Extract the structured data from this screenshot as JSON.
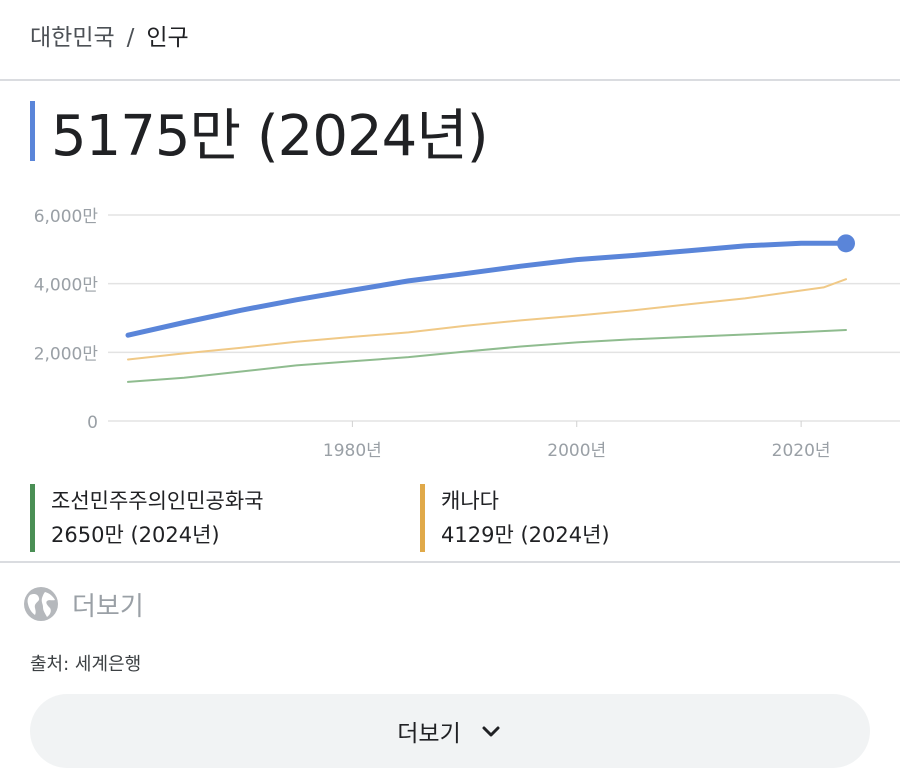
{
  "breadcrumb": {
    "country": "대한민국",
    "separator": "/",
    "topic": "인구"
  },
  "headline": {
    "value": "5175만 (2024년)"
  },
  "chart_data": {
    "type": "line",
    "x_range": [
      1960,
      2024
    ],
    "ylim": [
      0,
      60000000
    ],
    "y_ticks": [
      {
        "value": 60000000,
        "label": "6,000만"
      },
      {
        "value": 40000000,
        "label": "4,000만"
      },
      {
        "value": 20000000,
        "label": "2,000만"
      },
      {
        "value": 0,
        "label": "0"
      }
    ],
    "x_ticks": [
      {
        "value": 1980,
        "label": "1980년"
      },
      {
        "value": 2000,
        "label": "2000년"
      },
      {
        "value": 2020,
        "label": "2020년"
      }
    ],
    "grid": true,
    "series": [
      {
        "key": "korea",
        "color": "#5a85d9",
        "points": [
          [
            1960,
            25000000
          ],
          [
            1965,
            28700000
          ],
          [
            1970,
            32200000
          ],
          [
            1975,
            35300000
          ],
          [
            1980,
            38100000
          ],
          [
            1985,
            40800000
          ],
          [
            1990,
            42900000
          ],
          [
            1995,
            45100000
          ],
          [
            2000,
            47000000
          ],
          [
            2005,
            48200000
          ],
          [
            2010,
            49600000
          ],
          [
            2015,
            51000000
          ],
          [
            2020,
            51800000
          ],
          [
            2024,
            51750000
          ]
        ]
      },
      {
        "key": "nk",
        "color": "#8fbc8f",
        "points": [
          [
            1960,
            11400000
          ],
          [
            1965,
            12600000
          ],
          [
            1970,
            14400000
          ],
          [
            1975,
            16200000
          ],
          [
            1980,
            17400000
          ],
          [
            1985,
            18600000
          ],
          [
            1990,
            20200000
          ],
          [
            1995,
            21700000
          ],
          [
            2000,
            22900000
          ],
          [
            2005,
            23800000
          ],
          [
            2010,
            24500000
          ],
          [
            2015,
            25200000
          ],
          [
            2020,
            25900000
          ],
          [
            2024,
            26500000
          ]
        ]
      },
      {
        "key": "canada",
        "color": "#f0c987",
        "points": [
          [
            1960,
            17900000
          ],
          [
            1965,
            19700000
          ],
          [
            1970,
            21300000
          ],
          [
            1975,
            23100000
          ],
          [
            1980,
            24500000
          ],
          [
            1985,
            25800000
          ],
          [
            1990,
            27700000
          ],
          [
            1995,
            29300000
          ],
          [
            2000,
            30700000
          ],
          [
            2005,
            32200000
          ],
          [
            2010,
            34000000
          ],
          [
            2015,
            35700000
          ],
          [
            2020,
            38000000
          ],
          [
            2022,
            38900000
          ],
          [
            2024,
            41290000
          ]
        ]
      }
    ]
  },
  "legend": [
    {
      "name": "조선민주주의인민공화국",
      "value": "2650만 (2024년)",
      "color": "#4a8f55"
    },
    {
      "name": "캐나다",
      "value": "4129만 (2024년)",
      "color": "#e0a949"
    }
  ],
  "more_link": {
    "label": "더보기",
    "icon": "globe-icon"
  },
  "source": "출처: 세계은행",
  "more_button": {
    "label": "더보기",
    "icon": "chevron-down-icon"
  }
}
